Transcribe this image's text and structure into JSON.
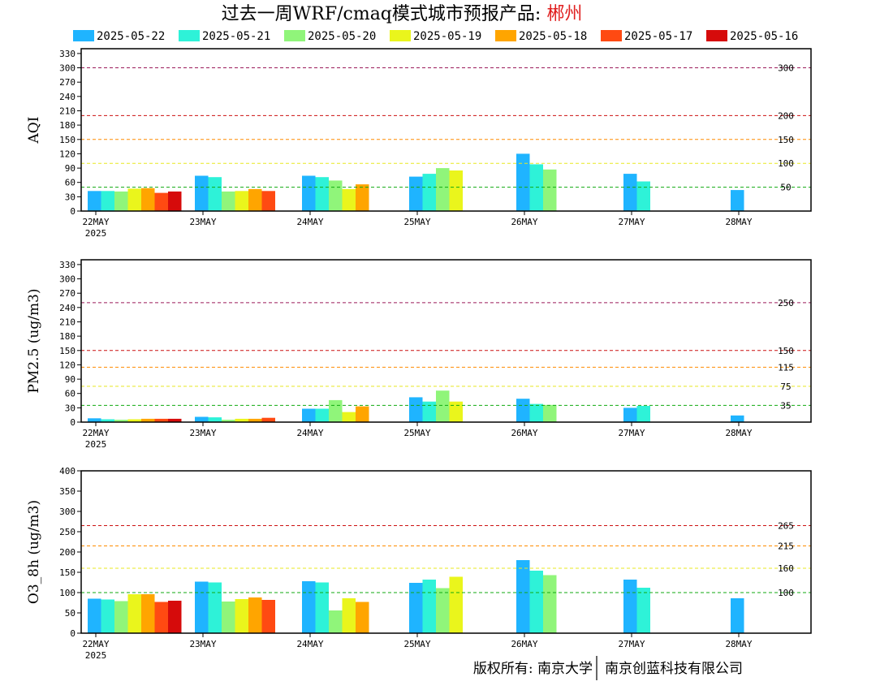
{
  "title": {
    "prefix": "过去一周WRF/cmaq模式城市预报产品: ",
    "city": "郴州"
  },
  "footer": {
    "left": "版权所有: 南京大学",
    "right": "南京创蓝科技有限公司"
  },
  "legend": [
    {
      "label": "2025-05-22",
      "color": "#1fb4ff"
    },
    {
      "label": "2025-05-21",
      "color": "#2ef2d8"
    },
    {
      "label": "2025-05-20",
      "color": "#90f57a"
    },
    {
      "label": "2025-05-19",
      "color": "#eaf51c"
    },
    {
      "label": "2025-05-18",
      "color": "#ffa500"
    },
    {
      "label": "2025-05-17",
      "color": "#ff4a12"
    },
    {
      "label": "2025-05-16",
      "color": "#d60b0b"
    }
  ],
  "chart_data": [
    {
      "type": "bar",
      "ylabel": "AQI",
      "ylim": [
        0,
        340
      ],
      "yticks": [
        0,
        30,
        60,
        90,
        120,
        150,
        180,
        210,
        240,
        270,
        300,
        330
      ],
      "categories": [
        "22MAY",
        "23MAY",
        "24MAY",
        "25MAY",
        "26MAY",
        "27MAY",
        "28MAY"
      ],
      "year_label": "2025",
      "reference_lines": [
        {
          "value": 300,
          "label": "300",
          "color": "#9b1b5a"
        },
        {
          "value": 200,
          "label": "200",
          "color": "#cc1111"
        },
        {
          "value": 150,
          "label": "150",
          "color": "#ff8c00"
        },
        {
          "value": 100,
          "label": "100",
          "color": "#e8e820"
        },
        {
          "value": 50,
          "label": "50",
          "color": "#11aa11"
        }
      ],
      "series": [
        {
          "name": "2025-05-22",
          "values": [
            42,
            74,
            74,
            72,
            120,
            78,
            44
          ]
        },
        {
          "name": "2025-05-21",
          "values": [
            42,
            71,
            71,
            78,
            98,
            62,
            null
          ]
        },
        {
          "name": "2025-05-20",
          "values": [
            41,
            41,
            64,
            90,
            87,
            null,
            null
          ]
        },
        {
          "name": "2025-05-19",
          "values": [
            47,
            42,
            46,
            85,
            null,
            null,
            null
          ]
        },
        {
          "name": "2025-05-18",
          "values": [
            48,
            46,
            56,
            null,
            null,
            null,
            null
          ]
        },
        {
          "name": "2025-05-17",
          "values": [
            38,
            42,
            null,
            null,
            null,
            null,
            null
          ]
        },
        {
          "name": "2025-05-16",
          "values": [
            41,
            null,
            null,
            null,
            null,
            null,
            null
          ]
        }
      ]
    },
    {
      "type": "bar",
      "ylabel": "PM2.5 (ug/m3)",
      "ylim": [
        0,
        340
      ],
      "yticks": [
        0,
        30,
        60,
        90,
        120,
        150,
        180,
        210,
        240,
        270,
        300,
        330
      ],
      "categories": [
        "22MAY",
        "23MAY",
        "24MAY",
        "25MAY",
        "26MAY",
        "27MAY",
        "28MAY"
      ],
      "year_label": "2025",
      "reference_lines": [
        {
          "value": 250,
          "label": "250",
          "color": "#9b1b5a"
        },
        {
          "value": 150,
          "label": "150",
          "color": "#cc1111"
        },
        {
          "value": 115,
          "label": "115",
          "color": "#ff8c00"
        },
        {
          "value": 75,
          "label": "75",
          "color": "#e8e820"
        },
        {
          "value": 35,
          "label": "35",
          "color": "#11aa11"
        }
      ],
      "series": [
        {
          "name": "2025-05-22",
          "values": [
            8,
            11,
            28,
            52,
            49,
            30,
            14
          ]
        },
        {
          "name": "2025-05-21",
          "values": [
            6,
            10,
            28,
            43,
            38,
            34,
            null
          ]
        },
        {
          "name": "2025-05-20",
          "values": [
            5,
            5,
            46,
            66,
            36,
            null,
            null
          ]
        },
        {
          "name": "2025-05-19",
          "values": [
            6,
            7,
            21,
            43,
            null,
            null,
            null
          ]
        },
        {
          "name": "2025-05-18",
          "values": [
            7,
            7,
            33,
            null,
            null,
            null,
            null
          ]
        },
        {
          "name": "2025-05-17",
          "values": [
            7,
            9,
            null,
            null,
            null,
            null,
            null
          ]
        },
        {
          "name": "2025-05-16",
          "values": [
            7,
            null,
            null,
            null,
            null,
            null,
            null
          ]
        }
      ]
    },
    {
      "type": "bar",
      "ylabel": "O3_8h (ug/m3)",
      "ylim": [
        0,
        400
      ],
      "yticks": [
        0,
        50,
        100,
        150,
        200,
        250,
        300,
        350,
        400
      ],
      "categories": [
        "22MAY",
        "23MAY",
        "24MAY",
        "25MAY",
        "26MAY",
        "27MAY",
        "28MAY"
      ],
      "year_label": "2025",
      "reference_lines": [
        {
          "value": 265,
          "label": "265",
          "color": "#cc1111"
        },
        {
          "value": 215,
          "label": "215",
          "color": "#ff8c00"
        },
        {
          "value": 160,
          "label": "160",
          "color": "#e8e820"
        },
        {
          "value": 100,
          "label": "100",
          "color": "#11aa11"
        }
      ],
      "series": [
        {
          "name": "2025-05-22",
          "values": [
            85,
            127,
            128,
            124,
            180,
            132,
            86
          ]
        },
        {
          "name": "2025-05-21",
          "values": [
            83,
            125,
            125,
            132,
            154,
            112,
            null
          ]
        },
        {
          "name": "2025-05-20",
          "values": [
            79,
            78,
            56,
            111,
            143,
            null,
            null
          ]
        },
        {
          "name": "2025-05-19",
          "values": [
            96,
            84,
            86,
            139,
            null,
            null,
            null
          ]
        },
        {
          "name": "2025-05-18",
          "values": [
            96,
            88,
            77,
            null,
            null,
            null,
            null
          ]
        },
        {
          "name": "2025-05-17",
          "values": [
            77,
            82,
            null,
            null,
            null,
            null,
            null
          ]
        },
        {
          "name": "2025-05-16",
          "values": [
            80,
            null,
            null,
            null,
            null,
            null,
            null
          ]
        }
      ]
    }
  ]
}
